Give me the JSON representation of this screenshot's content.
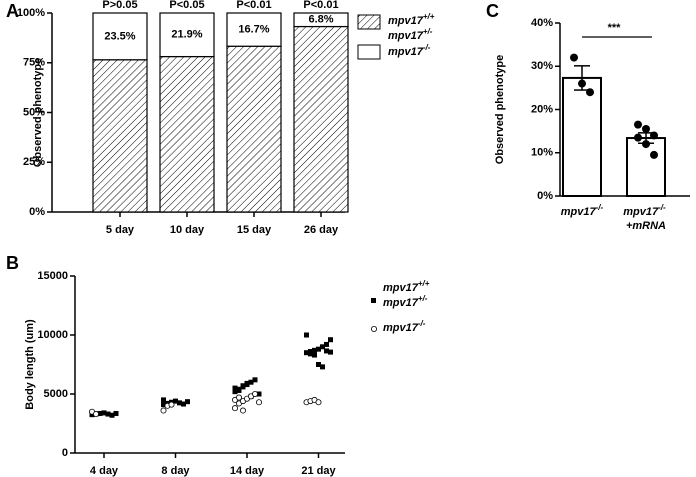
{
  "chart_data": [
    {
      "type": "stacked-bar",
      "panel": "A",
      "ylabel": "Observed phenotype",
      "categories": [
        "5 day",
        "10 day",
        "15 day",
        "26 day"
      ],
      "annotations": [
        "P>0.05",
        "P<0.05",
        "P<0.01",
        "P<0.01"
      ],
      "series": [
        {
          "name": "mpv17+/+ mpv17+/-",
          "color": "#000000",
          "hatch": true,
          "values": [
            76.5,
            78.1,
            83.3,
            93.2
          ]
        },
        {
          "name": "mpv17-/-",
          "color": "#ffffff",
          "values": [
            23.5,
            21.9,
            16.7,
            6.8
          ],
          "value_labels": [
            "23.5%",
            "21.9%",
            "16.7%",
            "6.8%"
          ]
        }
      ],
      "ylim": [
        0,
        100
      ],
      "yticks": [
        {
          "value": 0,
          "label": "0%"
        },
        {
          "value": 25,
          "label": "25%"
        },
        {
          "value": 50,
          "label": "50%"
        },
        {
          "value": 75,
          "label": "75%"
        },
        {
          "value": 100,
          "label": "100%"
        }
      ]
    },
    {
      "type": "dot",
      "panel": "B",
      "ylabel": "Body length (um)",
      "categories": [
        "4 day",
        "8 day",
        "14 day",
        "21 day"
      ],
      "series": [
        {
          "name": "mpv17+/+ mpv17+/-",
          "color": "#000000",
          "marker": "square",
          "values": [
            [
              3250,
              3300,
              3350,
              3400,
              3300,
              3200,
              3350,
              3450
            ],
            [
              4100,
              4200,
              4300,
              4400,
              4250,
              4150,
              4350,
              4500,
              4200
            ],
            [
              5200,
              5400,
              5600,
              5800,
              6000,
              6200,
              5000,
              5500,
              5300,
              5700,
              5900,
              4800
            ],
            [
              8500,
              8600,
              8700,
              8800,
              9000,
              9200,
              9600,
              10000,
              8400,
              8300,
              7500,
              7300,
              8650,
              8550
            ]
          ]
        },
        {
          "name": "mpv17-/-",
          "color": "#ffffff",
          "marker": "circle",
          "values": [
            [
              3500,
              3300
            ],
            [
              3600,
              4000,
              4100
            ],
            [
              3800,
              4200,
              4400,
              4600,
              4800,
              5000,
              4300,
              4500,
              4700,
              3600
            ],
            [
              4300,
              4400,
              4500,
              4300
            ]
          ]
        }
      ],
      "ylim": [
        0,
        15000
      ],
      "yticks": [
        0,
        5000,
        10000,
        15000
      ]
    },
    {
      "type": "bar",
      "panel": "C",
      "ylabel": "Observed phenotype",
      "categories": [
        "mpv17-/-",
        "mpv17-/- +mRNA"
      ],
      "values": [
        27.3,
        13.4
      ],
      "errors": [
        2.8,
        1.2
      ],
      "points": [
        [
          32,
          26,
          24
        ],
        [
          16.5,
          15.5,
          14,
          13.5,
          12,
          9.5
        ]
      ],
      "annotation": "***",
      "color": "#ffffff",
      "ylim": [
        0,
        40
      ],
      "yticks": [
        {
          "value": 0,
          "label": "0%"
        },
        {
          "value": 10,
          "label": "10%"
        },
        {
          "value": 20,
          "label": "20%"
        },
        {
          "value": 30,
          "label": "30%"
        },
        {
          "value": 40,
          "label": "40%"
        }
      ]
    }
  ]
}
